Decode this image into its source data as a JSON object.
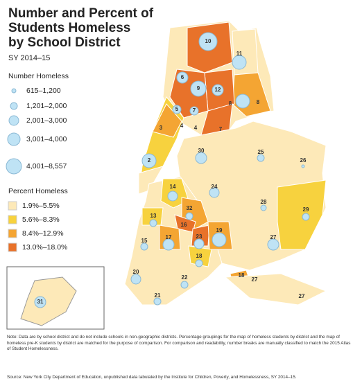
{
  "title": [
    "Number and Percent of",
    "Students Homeless",
    "by School District"
  ],
  "subtitle": "SY 2014–15",
  "legend_number": {
    "title": "Number Homeless",
    "bins": [
      "615–1,200",
      "1,201–2,000",
      "2,001–3,000",
      "3,001–4,000",
      "4,001–8,557"
    ]
  },
  "legend_percent": {
    "title": "Percent Homeless",
    "bins": [
      "1.9%–5.5%",
      "5.6%–8.3%",
      "8.4%–12.9%",
      "13.0%–18.0%"
    ],
    "colors": [
      "#fde9b8",
      "#f7d23e",
      "#f4a533",
      "#e8722a"
    ]
  },
  "districts": [
    "10",
    "11",
    "6",
    "9",
    "12",
    "8",
    "8",
    "5",
    "7",
    "3",
    "4",
    "4",
    "7",
    "2",
    "30",
    "25",
    "26",
    "24",
    "14",
    "28",
    "29",
    "13",
    "32",
    "15",
    "16",
    "17",
    "23",
    "19",
    "27",
    "18",
    "20",
    "22",
    "18",
    "27",
    "27",
    "21",
    "31"
  ],
  "note": "Note: Data are by school district and do not include schools in non-geographic districts. Percentage groupings for the map of homeless students by district and the map of homeless pre-K students by district are matched for the purpose of comparison. For comparison and readability, number breaks are manually classified to match the 2015 Atlas of Student Homelessness.",
  "source": "Source: New York City Department of Education, unpublished data tabulated by the Institute for Children, Poverty, and Homelessness, SY 2014–15."
}
